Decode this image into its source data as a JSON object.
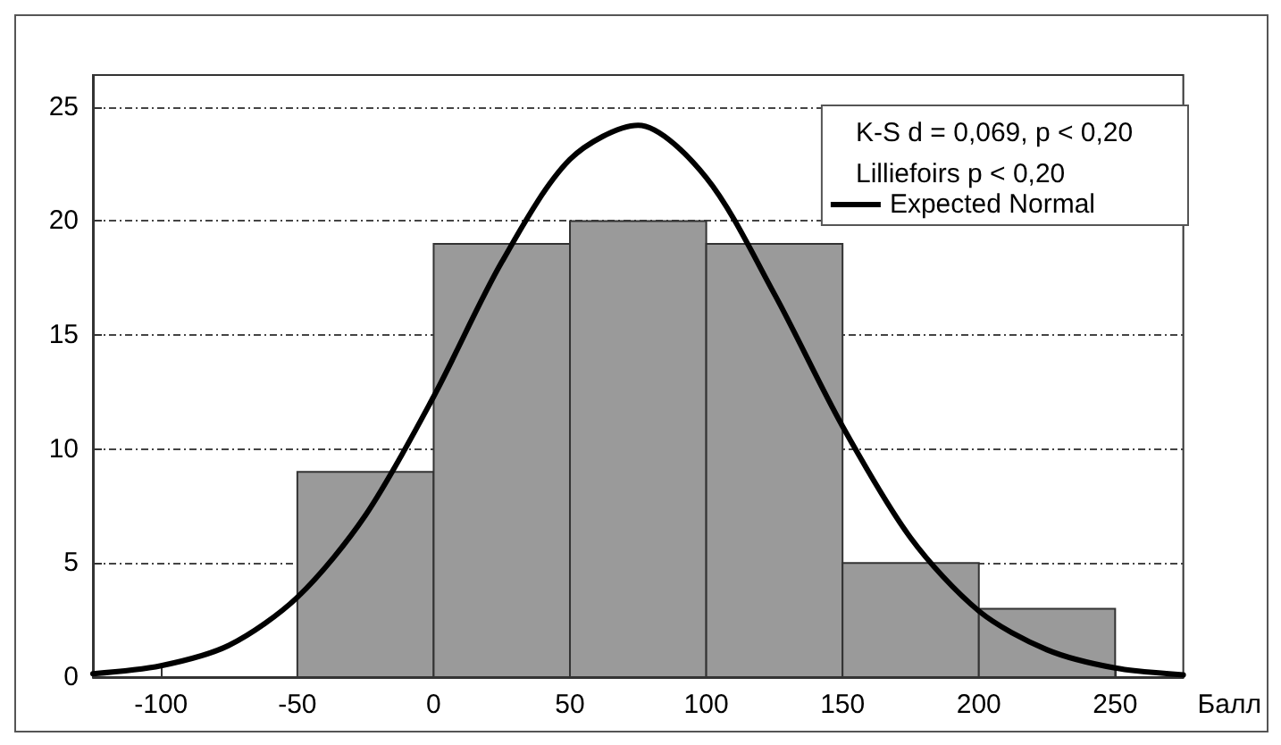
{
  "chart_data": {
    "type": "histogram",
    "xlabel": "Балл",
    "annotations": [
      "K-S d = 0,069, p < 0,20",
      "Lilliefoirs p < 0,20"
    ],
    "bins": [
      -50,
      0,
      50,
      100,
      150,
      200,
      250
    ],
    "values": [
      9,
      19,
      20,
      19,
      5,
      3
    ],
    "color": "#9a9a9a",
    "series": [
      {
        "type": "line",
        "name": "Expected Normal",
        "color": "#000000",
        "x": [
          -125,
          -100,
          -75,
          -50,
          -25,
          0,
          25,
          50,
          75,
          100,
          125,
          150,
          175,
          200,
          225,
          250,
          275
        ],
        "values": [
          0.15,
          0.5,
          1.4,
          3.5,
          7.1,
          12.3,
          18.2,
          22.7,
          24.2,
          21.9,
          16.8,
          11,
          6.1,
          2.9,
          1.2,
          0.4,
          0.1
        ]
      }
    ],
    "xlim": [
      -125,
      275
    ],
    "ylim": [
      0,
      26.4
    ],
    "xticks": [
      -100,
      -50,
      0,
      50,
      100,
      150,
      200,
      250
    ],
    "yticks": [
      0,
      5,
      10,
      15,
      20,
      25
    ],
    "grid": "y",
    "legend": "top right",
    "marker": "none",
    "line_style": "solid"
  }
}
